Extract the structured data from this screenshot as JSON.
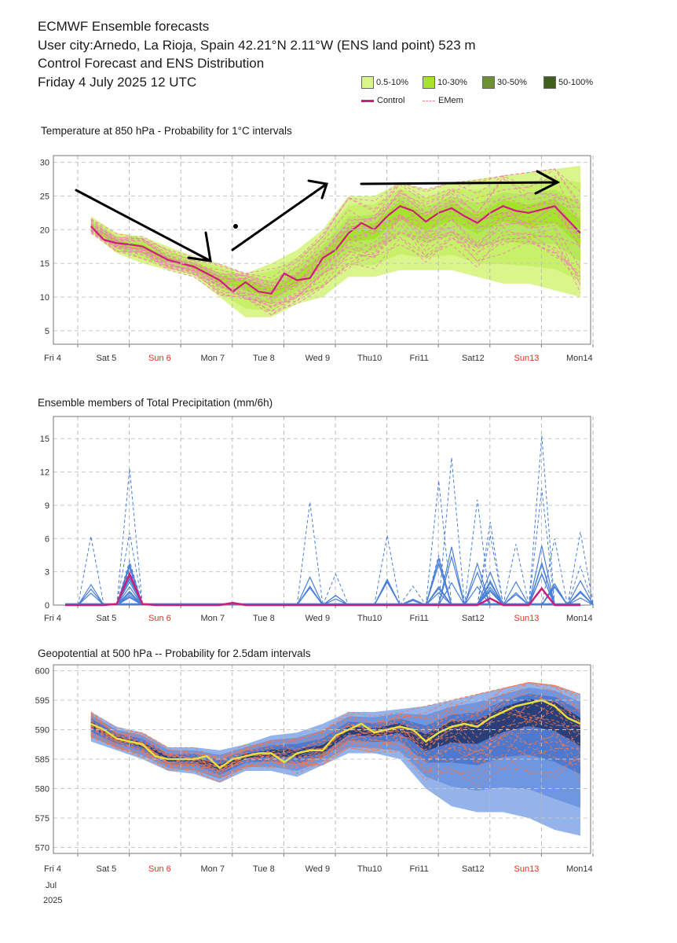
{
  "header": {
    "line1": "ECMWF Ensemble forecasts",
    "line2": "User city:Arnedo, La Rioja, Spain 42.21°N 2.11°W (ENS land point) 523 m",
    "line3": "Control Forecast and ENS Distribution",
    "line4": "Friday  4 July 2025 12 UTC"
  },
  "legend": {
    "items": [
      {
        "label": "0.5-10%",
        "color": "#d9f58c"
      },
      {
        "label": "10-30%",
        "color": "#a6e22e"
      },
      {
        "label": "30-50%",
        "color": "#6f8f35"
      },
      {
        "label": "50-100%",
        "color": "#3f5f1a"
      }
    ],
    "control_label": "Control",
    "control_color": "#cc1f7a",
    "emem_label": "EMem",
    "emem_color": "#f08080"
  },
  "x_axis": {
    "labels": [
      "Fri 4",
      "Sat 5",
      "Sun 6",
      "Mon 7",
      "Tue 8",
      "Wed 9",
      "Thu10",
      "Fri11",
      "Sat12",
      "Sun13",
      "Mon14"
    ],
    "weekend": [
      false,
      false,
      true,
      false,
      false,
      false,
      false,
      false,
      false,
      true,
      false
    ],
    "month": "Jul",
    "year": "2025"
  },
  "chart_data": [
    {
      "type": "area",
      "title": "Temperature at 850 hPa - Probability for 1°C intervals",
      "ylim": [
        3,
        31
      ],
      "yticks": [
        5,
        10,
        15,
        20,
        25,
        30
      ],
      "grid": true,
      "x_unit": "days from Fri 4 00 UTC",
      "control": {
        "name": "Control",
        "x": [
          0.5,
          0.75,
          1.0,
          1.25,
          1.5,
          1.75,
          2.0,
          2.25,
          2.5,
          2.75,
          3.0,
          3.25,
          3.5,
          3.75,
          4.0,
          4.25,
          4.5,
          4.75,
          5.0,
          5.25,
          5.5,
          5.75,
          6.0,
          6.25,
          6.5,
          6.75,
          7.0,
          7.25,
          7.5,
          7.75,
          8.0,
          8.25,
          8.5,
          8.75,
          9.0,
          9.25,
          9.5,
          9.75,
          10.0
        ],
        "y": [
          20.5,
          18.5,
          18.0,
          17.8,
          17.5,
          16.5,
          15.5,
          15.0,
          14.5,
          13.5,
          12.5,
          10.8,
          12.2,
          10.8,
          10.5,
          13.5,
          12.5,
          12.8,
          15.8,
          17.0,
          19.5,
          21.0,
          20.0,
          22.0,
          23.5,
          22.8,
          21.2,
          22.5,
          23.2,
          22.0,
          21.0,
          22.5,
          23.5,
          22.8,
          22.5,
          23.0,
          23.5,
          21.5,
          19.5
        ]
      },
      "envelope": {
        "x": [
          0.5,
          1.0,
          1.5,
          2.0,
          2.5,
          3.0,
          3.5,
          4.0,
          4.5,
          5.0,
          5.5,
          6.0,
          6.5,
          7.0,
          7.5,
          8.0,
          8.5,
          9.0,
          9.5,
          10.0
        ],
        "upper": [
          22,
          19.5,
          19,
          17.5,
          16,
          15,
          13.5,
          15,
          17,
          20,
          25,
          25,
          27,
          26,
          27,
          27.5,
          28,
          28.5,
          29,
          29.5
        ],
        "lower": [
          19.5,
          16.5,
          15,
          14,
          13,
          10,
          7,
          7,
          9,
          10,
          13,
          13,
          14,
          14,
          14,
          13,
          12,
          12,
          11,
          10
        ]
      }
    },
    {
      "type": "line",
      "title": "Ensemble members of Total Precipitation (mm/6h)",
      "ylim": [
        0,
        17
      ],
      "yticks": [
        0,
        3,
        6,
        9,
        12,
        15
      ],
      "grid": true,
      "series": [
        {
          "name": "Control",
          "x": [
            0,
            0.5,
            0.75,
            1.0,
            1.25,
            1.5,
            1.75,
            2.0,
            3.0,
            3.25,
            3.5,
            4.0,
            5.0,
            6.0,
            7.0,
            7.75,
            8.0,
            8.25,
            8.5,
            9.0,
            9.25,
            9.5,
            10.0
          ],
          "y": [
            0,
            0,
            0,
            0.1,
            2.8,
            0.1,
            0,
            0,
            0,
            0.2,
            0,
            0,
            0,
            0,
            0,
            0,
            0,
            0.6,
            0,
            0,
            1.5,
            0,
            0
          ]
        },
        {
          "name": "",
          "peaks": [
            [
              0.5,
              6.2
            ],
            [
              1.25,
              12.3
            ],
            [
              1.25,
              6.5
            ],
            [
              1.25,
              4.0
            ],
            [
              1.25,
              3.2
            ],
            [
              4.75,
              9.3
            ],
            [
              5.25,
              2.8
            ],
            [
              6.25,
              6.3
            ],
            [
              6.75,
              1.7
            ],
            [
              7.25,
              11.2
            ],
            [
              7.25,
              4.5
            ],
            [
              7.5,
              13.3
            ],
            [
              8.0,
              9.5
            ],
            [
              8.25,
              7.5
            ],
            [
              8.25,
              6.3
            ],
            [
              8.75,
              5.5
            ],
            [
              9.25,
              15.3
            ],
            [
              9.25,
              10.5
            ],
            [
              9.5,
              6.0
            ],
            [
              10.0,
              6.6
            ],
            [
              10.0,
              3.5
            ]
          ]
        }
      ]
    },
    {
      "type": "area",
      "title": "Geopotential at 500 hPa -- Probability for 2.5dam intervals",
      "ylim": [
        569,
        601
      ],
      "yticks": [
        570,
        575,
        580,
        585,
        590,
        595,
        600
      ],
      "grid": true,
      "control": {
        "name": "Control",
        "x": [
          0.5,
          0.75,
          1.0,
          1.25,
          1.5,
          1.75,
          2.0,
          2.25,
          2.5,
          2.75,
          3.0,
          3.25,
          3.5,
          3.75,
          4.0,
          4.25,
          4.5,
          4.75,
          5.0,
          5.25,
          5.5,
          5.75,
          6.0,
          6.25,
          6.5,
          6.75,
          7.0,
          7.25,
          7.5,
          7.75,
          8.0,
          8.25,
          8.5,
          8.75,
          9.0,
          9.25,
          9.5,
          9.75,
          10.0
        ],
        "y": [
          591,
          590,
          588.5,
          588,
          587.5,
          585.5,
          585,
          585,
          585,
          585.5,
          583.5,
          585,
          585.5,
          586,
          586,
          584.5,
          586,
          586.5,
          586.5,
          589,
          590,
          591,
          589.5,
          590,
          590.5,
          590,
          588,
          589.5,
          590.5,
          591,
          590.5,
          592,
          593,
          594,
          594.5,
          595,
          594,
          592,
          591
        ]
      },
      "envelope": {
        "x": [
          0.5,
          1.0,
          1.5,
          2.0,
          2.5,
          3.0,
          3.5,
          4.0,
          4.5,
          5.0,
          5.5,
          6.0,
          6.5,
          7.0,
          7.5,
          8.0,
          8.5,
          9.0,
          9.5,
          10.0
        ],
        "upper": [
          593,
          590.5,
          589.5,
          587,
          587,
          586.5,
          587.5,
          589,
          589.5,
          591,
          593,
          593,
          593.5,
          594,
          595,
          596,
          597,
          598,
          597.5,
          596
        ],
        "lower": [
          588,
          586.5,
          585,
          583,
          582.5,
          581,
          583,
          583,
          582,
          584,
          586,
          586,
          585,
          580,
          577,
          576,
          576,
          575,
          573,
          572
        ]
      }
    }
  ]
}
